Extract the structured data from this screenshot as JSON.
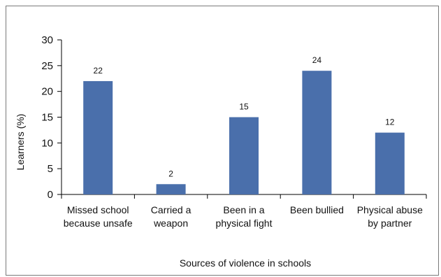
{
  "chart_data": {
    "type": "bar",
    "categories": [
      [
        "Missed school",
        "because unsafe"
      ],
      [
        "Carried a",
        "weapon"
      ],
      [
        "Been in a",
        "physical fight"
      ],
      [
        "Been bullied"
      ],
      [
        "Physical abuse",
        "by partner"
      ]
    ],
    "values": [
      22,
      2,
      15,
      24,
      12
    ],
    "xlabel": "Sources of violence in schools",
    "ylabel": "Learners (%)",
    "ylim": [
      0,
      30
    ],
    "yticks": [
      0,
      5,
      10,
      15,
      20,
      25,
      30
    ],
    "bar_color": "#4a6fab",
    "grid": false,
    "legend": "none"
  }
}
